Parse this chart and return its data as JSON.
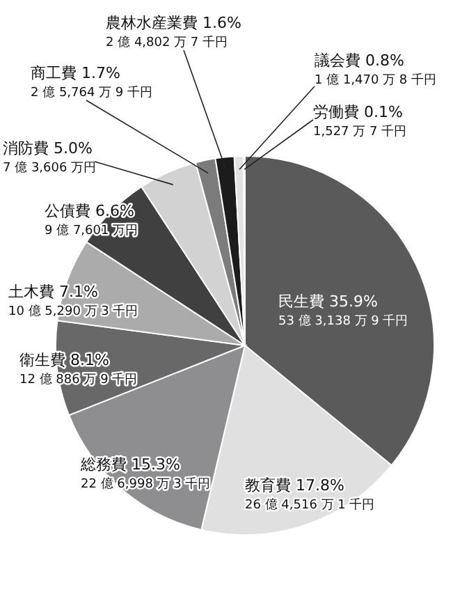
{
  "chart_data": {
    "type": "pie",
    "categories": [
      "民生費",
      "教育費",
      "総務費",
      "衛生費",
      "土木費",
      "公債費",
      "消防費",
      "商工費",
      "農林水産業費",
      "議会費",
      "労働費"
    ],
    "values": [
      35.9,
      17.8,
      15.3,
      8.1,
      7.1,
      6.6,
      5.0,
      1.7,
      1.6,
      0.8,
      0.1
    ],
    "colors": [
      "#5a5a5a",
      "#e0e0e0",
      "#8e8e90",
      "#686868",
      "#ababab",
      "#404040",
      "#d2d2d2",
      "#7c7c7c",
      "#1c1c1c",
      "#e2e2e2",
      "#5c5c5c"
    ],
    "value_labels": [
      "35.9%",
      "17.8%",
      "15.3%",
      "8.1%",
      "7.1%",
      "6.6%",
      "5.0%",
      "1.7%",
      "1.6%",
      "0.8%",
      "0.1%"
    ],
    "annotations": [
      {
        "text": "53 億 3,138 万 9 千円",
        "x": "民生費"
      },
      {
        "text": "26 億 4,516 万 1 千円",
        "x": "教育費"
      },
      {
        "text": "22 億 6,998 万 3 千円",
        "x": "総務費"
      },
      {
        "text": "12 億 886 万 9 千円",
        "x": "衛生費"
      },
      {
        "text": "10 億 5,290 万 3 千円",
        "x": "土木費"
      },
      {
        "text": "9 億 7,601 万円",
        "x": "公債費"
      },
      {
        "text": "7 億 3,606 万円",
        "x": "消防費"
      },
      {
        "text": "2 億 5,764 万 9 千円",
        "x": "商工費"
      },
      {
        "text": "2 億 4,802 万 7 千円",
        "x": "農林水産業費"
      },
      {
        "text": "1 億 1,470 万 8 千円",
        "x": "議会費"
      },
      {
        "text": "1,527 万 7 千円",
        "x": "労働費"
      }
    ]
  }
}
